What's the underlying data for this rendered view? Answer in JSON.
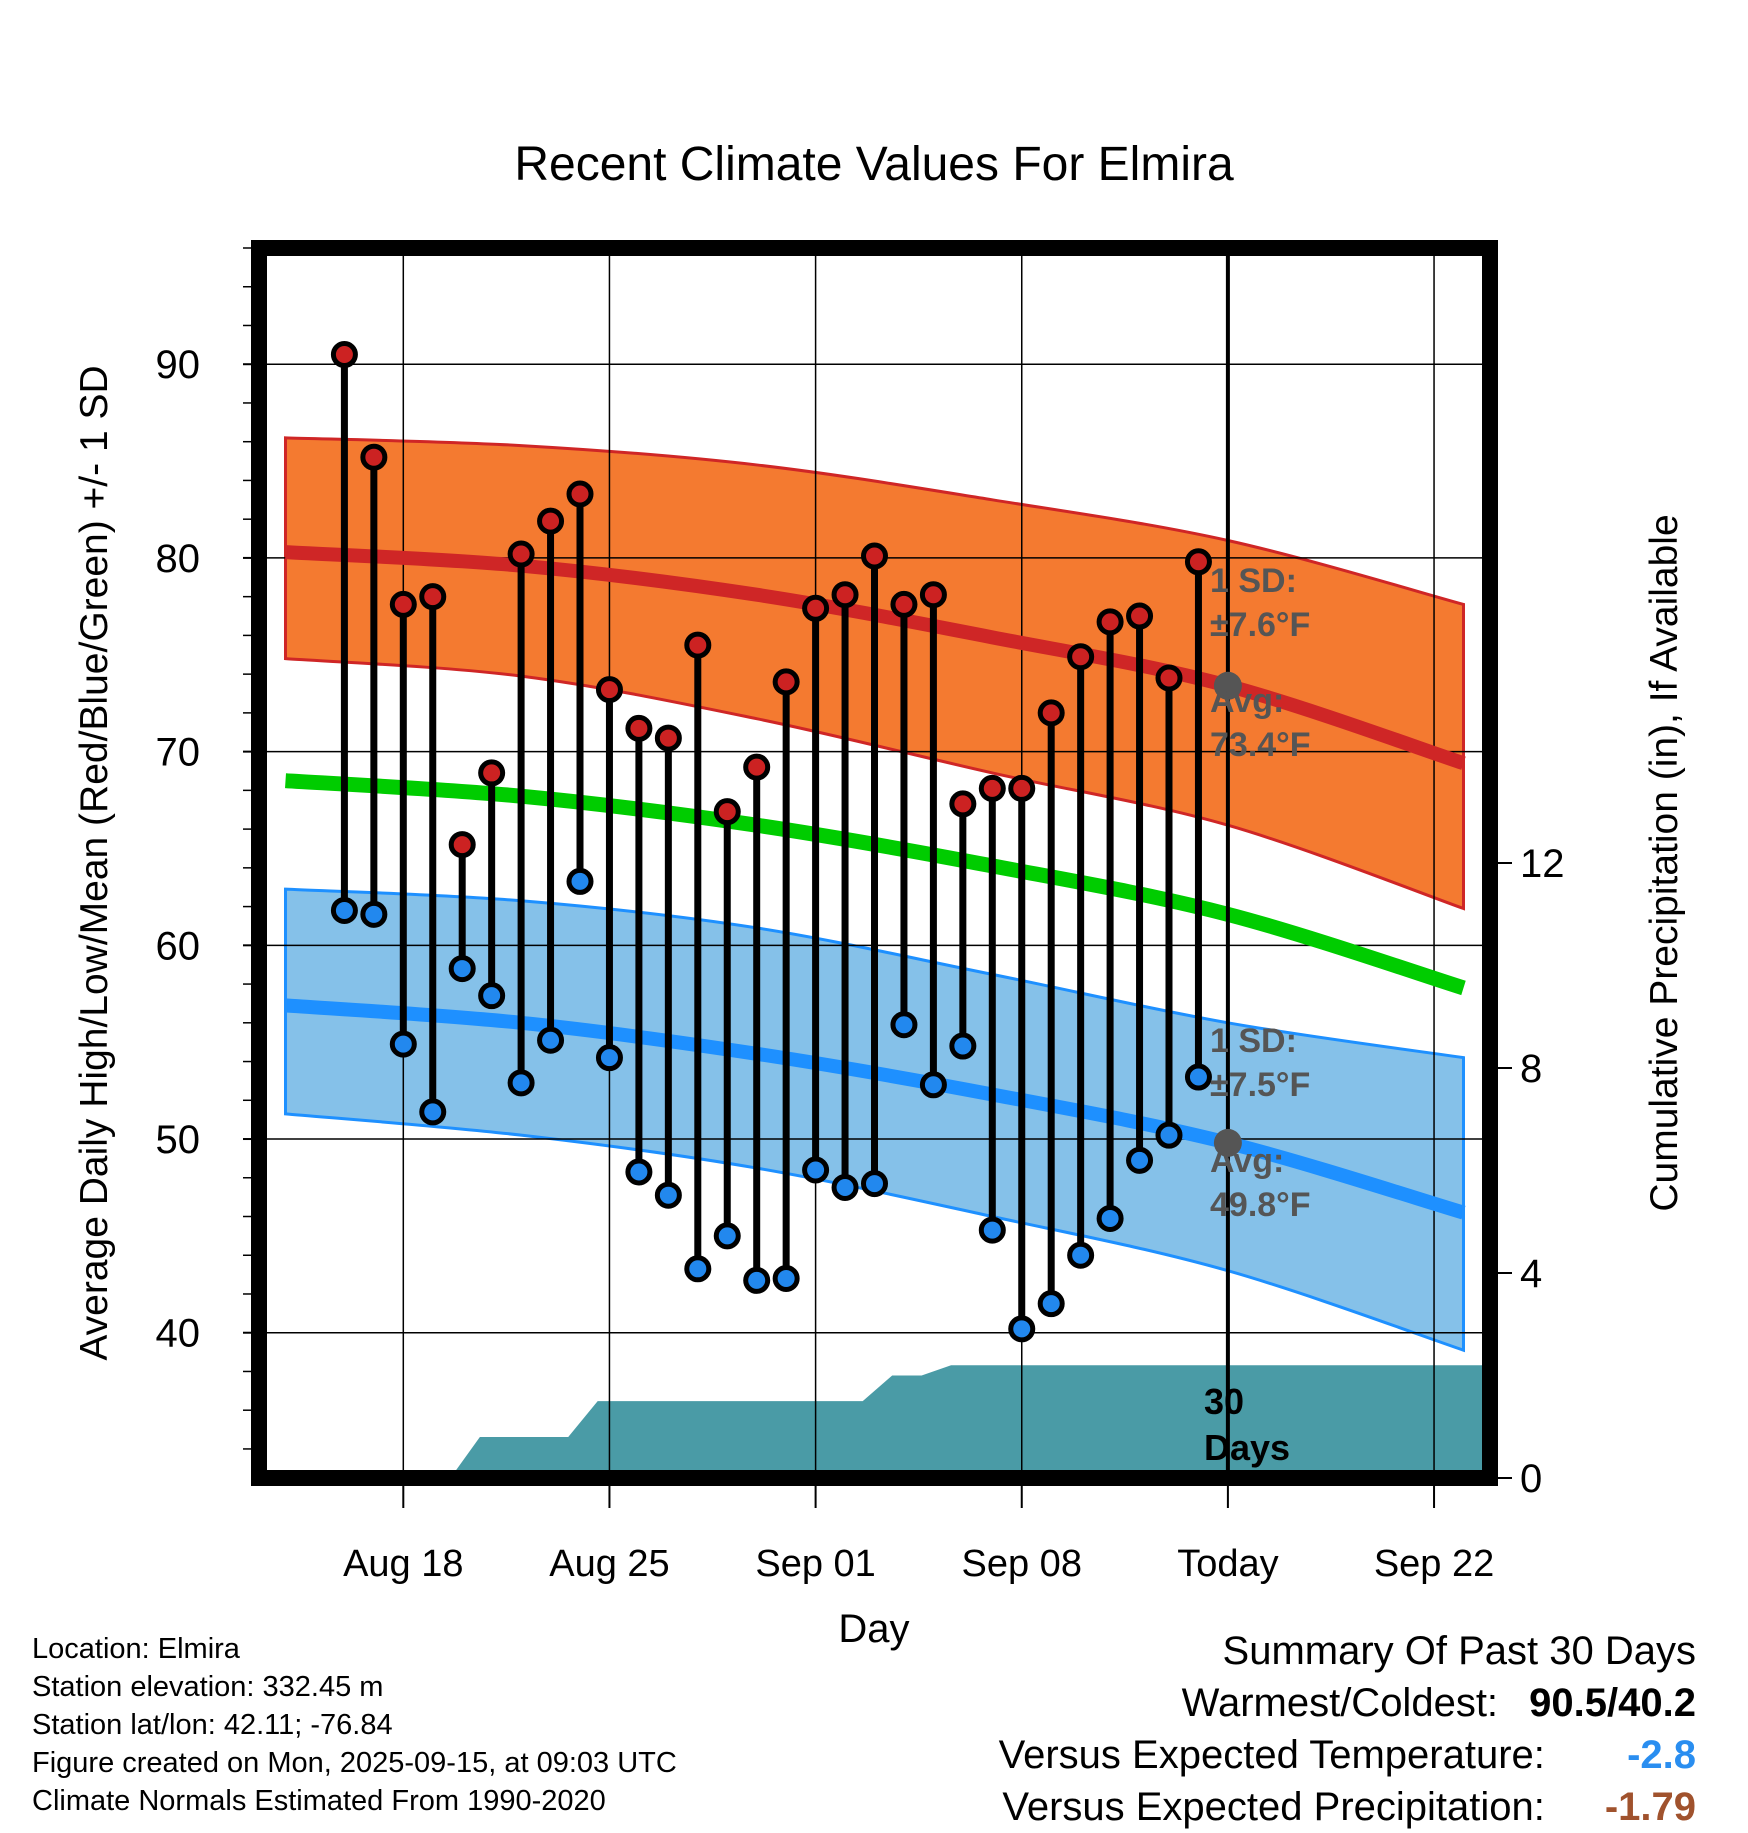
{
  "chart_data": {
    "type": "line",
    "title": "Recent Climate Values For Elmira",
    "xlabel": "Day",
    "ylabel_left": "Average Daily High/Low/Mean (Red/Blue/Green) +/- 1 SD",
    "ylabel_right": "Cumulative Precipitation (in), If Available",
    "ylim_left": [
      32.5,
      96
    ],
    "ylim_right": [
      0,
      24
    ],
    "x_range_days": [
      -32.9,
      8.9
    ],
    "x_ticks": [
      {
        "day": -28,
        "label": "Aug 18"
      },
      {
        "day": -21,
        "label": "Aug 25"
      },
      {
        "day": -14,
        "label": "Sep 01"
      },
      {
        "day": -7,
        "label": "Sep 08"
      },
      {
        "day": 0,
        "label": "Today"
      },
      {
        "day": 7,
        "label": "Sep 22"
      }
    ],
    "y_ticks_left": [
      40,
      50,
      60,
      70,
      80,
      90
    ],
    "y_ticks_right": [
      0,
      4,
      8,
      12
    ],
    "daily": {
      "days": [
        -30,
        -29,
        -28,
        -27,
        -26,
        -25,
        -24,
        -23,
        -22,
        -21,
        -20,
        -19,
        -18,
        -17,
        -16,
        -15,
        -14,
        -13,
        -12,
        -11,
        -10,
        -9,
        -8,
        -7,
        -6,
        -5,
        -4,
        -3,
        -2,
        -1
      ],
      "highs": [
        90.5,
        85.2,
        77.6,
        78.0,
        65.2,
        68.9,
        80.2,
        81.9,
        83.3,
        73.2,
        71.2,
        70.7,
        75.5,
        66.9,
        69.2,
        73.6,
        77.4,
        78.1,
        80.1,
        77.6,
        78.1,
        67.3,
        68.1,
        68.1,
        72.0,
        74.9,
        76.7,
        77.0,
        73.8,
        79.8
      ],
      "lows": [
        61.8,
        61.6,
        54.9,
        51.4,
        58.8,
        57.4,
        52.9,
        55.1,
        63.3,
        54.2,
        48.3,
        47.1,
        43.3,
        45.0,
        42.7,
        42.8,
        48.4,
        47.5,
        47.7,
        55.9,
        52.8,
        54.8,
        45.3,
        40.2,
        41.5,
        44.0,
        45.9,
        48.9,
        50.2,
        53.2
      ]
    },
    "normals": {
      "days": [
        -32,
        -24,
        -16,
        -8,
        0,
        8
      ],
      "avg_high": [
        80.3,
        79.6,
        78.1,
        75.9,
        73.4,
        69.4
      ],
      "avg_high_upper": [
        86.2,
        85.8,
        84.8,
        83.0,
        80.9,
        77.6
      ],
      "avg_high_lower": [
        74.8,
        73.9,
        71.7,
        68.9,
        66.2,
        61.9
      ],
      "avg_mean": [
        68.5,
        67.7,
        66.2,
        64.1,
        61.6,
        57.8
      ],
      "avg_low": [
        56.9,
        56.0,
        54.4,
        52.3,
        49.8,
        46.2
      ],
      "avg_low_upper": [
        62.9,
        62.3,
        60.9,
        58.5,
        56.0,
        54.2
      ],
      "avg_low_lower": [
        51.3,
        50.2,
        48.5,
        46.0,
        43.2,
        39.1
      ]
    },
    "precip": {
      "days": [
        -32.9,
        -29.4,
        -27.4,
        -26.4,
        -25.4,
        -23.4,
        -22.4,
        -21.4,
        -20.4,
        -19.4,
        -18.4,
        -12.4,
        -11.4,
        -10.4,
        -9.4,
        -8.4,
        8.9
      ],
      "values": [
        0,
        0,
        0,
        0,
        0.8,
        0.8,
        0.8,
        1.5,
        1.5,
        1.5,
        1.5,
        1.5,
        2.0,
        2.0,
        2.2,
        2.2,
        2.2
      ]
    },
    "annotations": {
      "high_sd_line1": "1 SD:",
      "high_sd_line2": "±7.6°F",
      "high_avg_line1": "Avg:",
      "high_avg_line2": "73.4°F",
      "low_sd_line1": "1 SD:",
      "low_sd_line2": "±7.5°F",
      "low_avg_line1": "Avg:",
      "low_avg_line2": "49.8°F",
      "days_line1": "30",
      "days_line2": "Days"
    },
    "colors": {
      "high_band": "#f47a30",
      "high_line": "#cf2626",
      "mean_line": "#00cc00",
      "low_band": "#85c1e9",
      "low_line": "#1e90ff",
      "precip": "#4a9ba6",
      "high_marker": "#cc2222",
      "low_marker": "#2288ee",
      "today_marker": "#555555",
      "annotation": "#555555"
    }
  },
  "footer": {
    "location": "Location: Elmira",
    "elevation": "Station elevation: 332.45 m",
    "latlon": "Station lat/lon: 42.11; -76.84",
    "created": "Figure created on Mon, 2025-09-15, at 09:03 UTC",
    "normals": "Climate Normals Estimated From 1990-2020"
  },
  "summary": {
    "title": "Summary Of Past 30 Days",
    "warmest_coldest_label": "Warmest/Coldest:",
    "warmest_coldest_value": "90.5/40.2",
    "temp_label": "Versus Expected Temperature:",
    "temp_value": "-2.8",
    "temp_color": "#2a8ef0",
    "precip_label": "Versus Expected Precipitation:",
    "precip_value": "-1.79",
    "precip_color": "#a0522d"
  }
}
